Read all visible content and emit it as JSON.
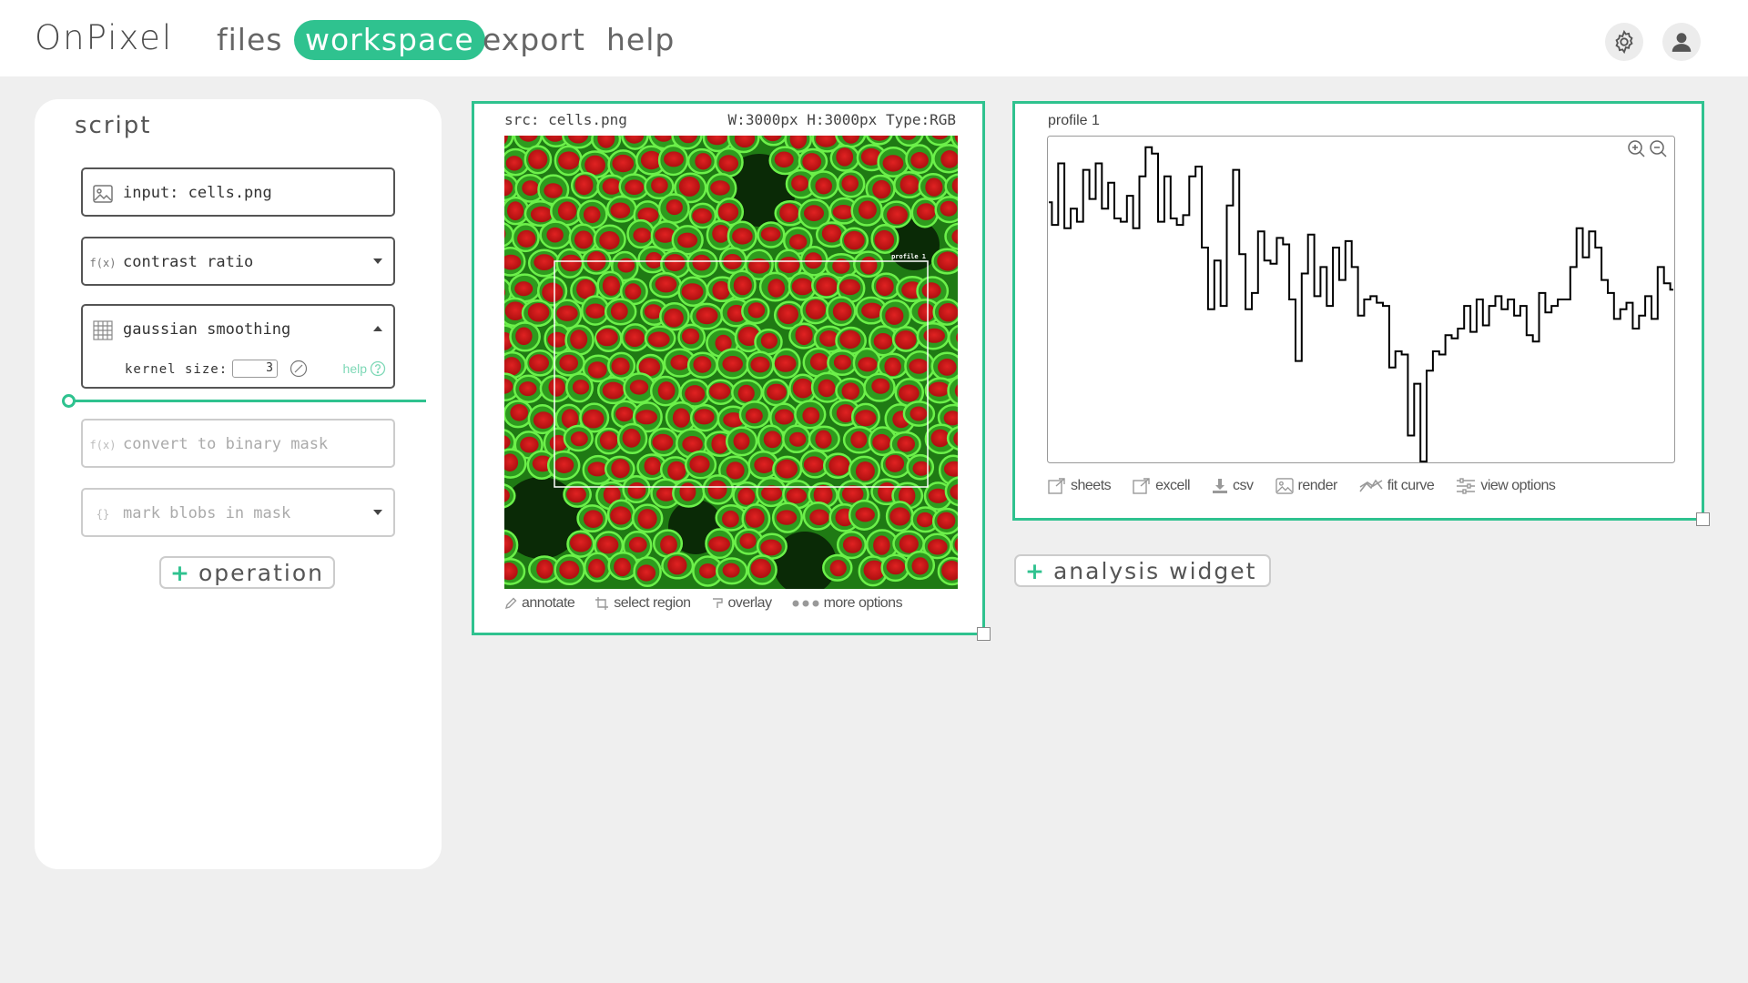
{
  "app": {
    "logo": "OnPixel",
    "nav": [
      {
        "label": "files"
      },
      {
        "label": "workspace"
      },
      {
        "label": "export"
      },
      {
        "label": "help"
      }
    ],
    "active_nav": "workspace",
    "icons": {
      "settings": "gear-icon",
      "account": "user-icon"
    },
    "accent_color": "#2fc28f"
  },
  "script": {
    "title": "script",
    "operations": [
      {
        "label": "input: cells.png",
        "icon": "image-icon"
      },
      {
        "label": "contrast ratio",
        "icon": "function-icon",
        "icon_text": "f(x)"
      },
      {
        "label": "gaussian smoothing",
        "icon": "grid-icon",
        "kernel_label": "kernel size:",
        "kernel_value": "3",
        "help_label": "help"
      },
      {
        "label": "convert to binary mask",
        "icon": "function-icon",
        "icon_text": "f(x)"
      },
      {
        "label": "mark blobs in mask",
        "icon": "braces-icon",
        "icon_text": "{}"
      }
    ],
    "add_operation_label": "operation",
    "progress_fraction": 0.0
  },
  "image_widget": {
    "source": "src: cells.png",
    "info": "W:3000px H:3000px Type:RGB",
    "region_label": "profile 1",
    "toolbar": [
      {
        "label": "annotate",
        "icon": "pencil-icon"
      },
      {
        "label": "select region",
        "icon": "crop-icon"
      },
      {
        "label": "overlay",
        "icon": "brush-icon"
      },
      {
        "label": "more options",
        "icon": "dots-icon"
      }
    ]
  },
  "profile_widget": {
    "title": "profile 1",
    "toolbar": [
      {
        "label": "sheets",
        "icon": "external-link-icon"
      },
      {
        "label": "excell",
        "icon": "external-link-icon"
      },
      {
        "label": "csv",
        "icon": "download-icon"
      },
      {
        "label": "render",
        "icon": "image-icon"
      },
      {
        "label": "fit curve",
        "icon": "trend-icon"
      },
      {
        "label": "view options",
        "icon": "sliders-icon"
      }
    ]
  },
  "add_widget_label": "analysis widget",
  "chart_data": {
    "type": "line",
    "title": "",
    "xlabel": "",
    "ylabel": "",
    "grid": false,
    "xlim": [
      0,
      100
    ],
    "ylim": [
      0,
      100
    ],
    "series": [
      {
        "color": "#000000",
        "x": [
          0,
          1,
          2,
          3,
          4,
          5,
          6,
          7,
          8,
          9,
          10,
          11,
          12,
          13,
          14,
          15,
          16,
          17,
          18,
          19,
          20,
          21,
          22,
          23,
          24,
          25,
          26,
          27,
          28,
          29,
          30,
          31,
          32,
          33,
          34,
          35,
          36,
          37,
          38,
          39,
          40,
          41,
          42,
          43,
          44,
          45,
          46,
          47,
          48,
          49,
          50,
          51,
          52,
          53,
          54,
          55,
          56,
          57,
          58,
          59,
          60,
          61,
          62,
          63,
          64,
          65,
          66,
          67,
          68,
          69,
          70,
          71,
          72,
          73,
          74,
          75,
          76,
          77,
          78,
          79,
          80,
          81,
          82,
          83,
          84,
          85,
          86,
          87,
          88,
          89,
          90,
          91,
          92,
          93,
          94,
          95,
          96,
          97,
          98,
          99,
          100
        ],
        "values": [
          80,
          73,
          92,
          72,
          78,
          74,
          90,
          81,
          92,
          78,
          86,
          75,
          74,
          82,
          72,
          88,
          97,
          95,
          74,
          88,
          75,
          73,
          76,
          88,
          91,
          66,
          47,
          62,
          48,
          79,
          90,
          64,
          47,
          52,
          71,
          62,
          61,
          69,
          67,
          50,
          31,
          58,
          70,
          51,
          60,
          48,
          66,
          56,
          68,
          60,
          45,
          50,
          51,
          49,
          48,
          29,
          34,
          33,
          8,
          24,
          0,
          28,
          34,
          33,
          39,
          38,
          41,
          48,
          40,
          50,
          42,
          48,
          51,
          47,
          50,
          45,
          48,
          39,
          37,
          52,
          46,
          48,
          50,
          50,
          60,
          72,
          63,
          71,
          66,
          56,
          52,
          44,
          47,
          49,
          41,
          45,
          51,
          44,
          60,
          55,
          53
        ]
      }
    ]
  }
}
